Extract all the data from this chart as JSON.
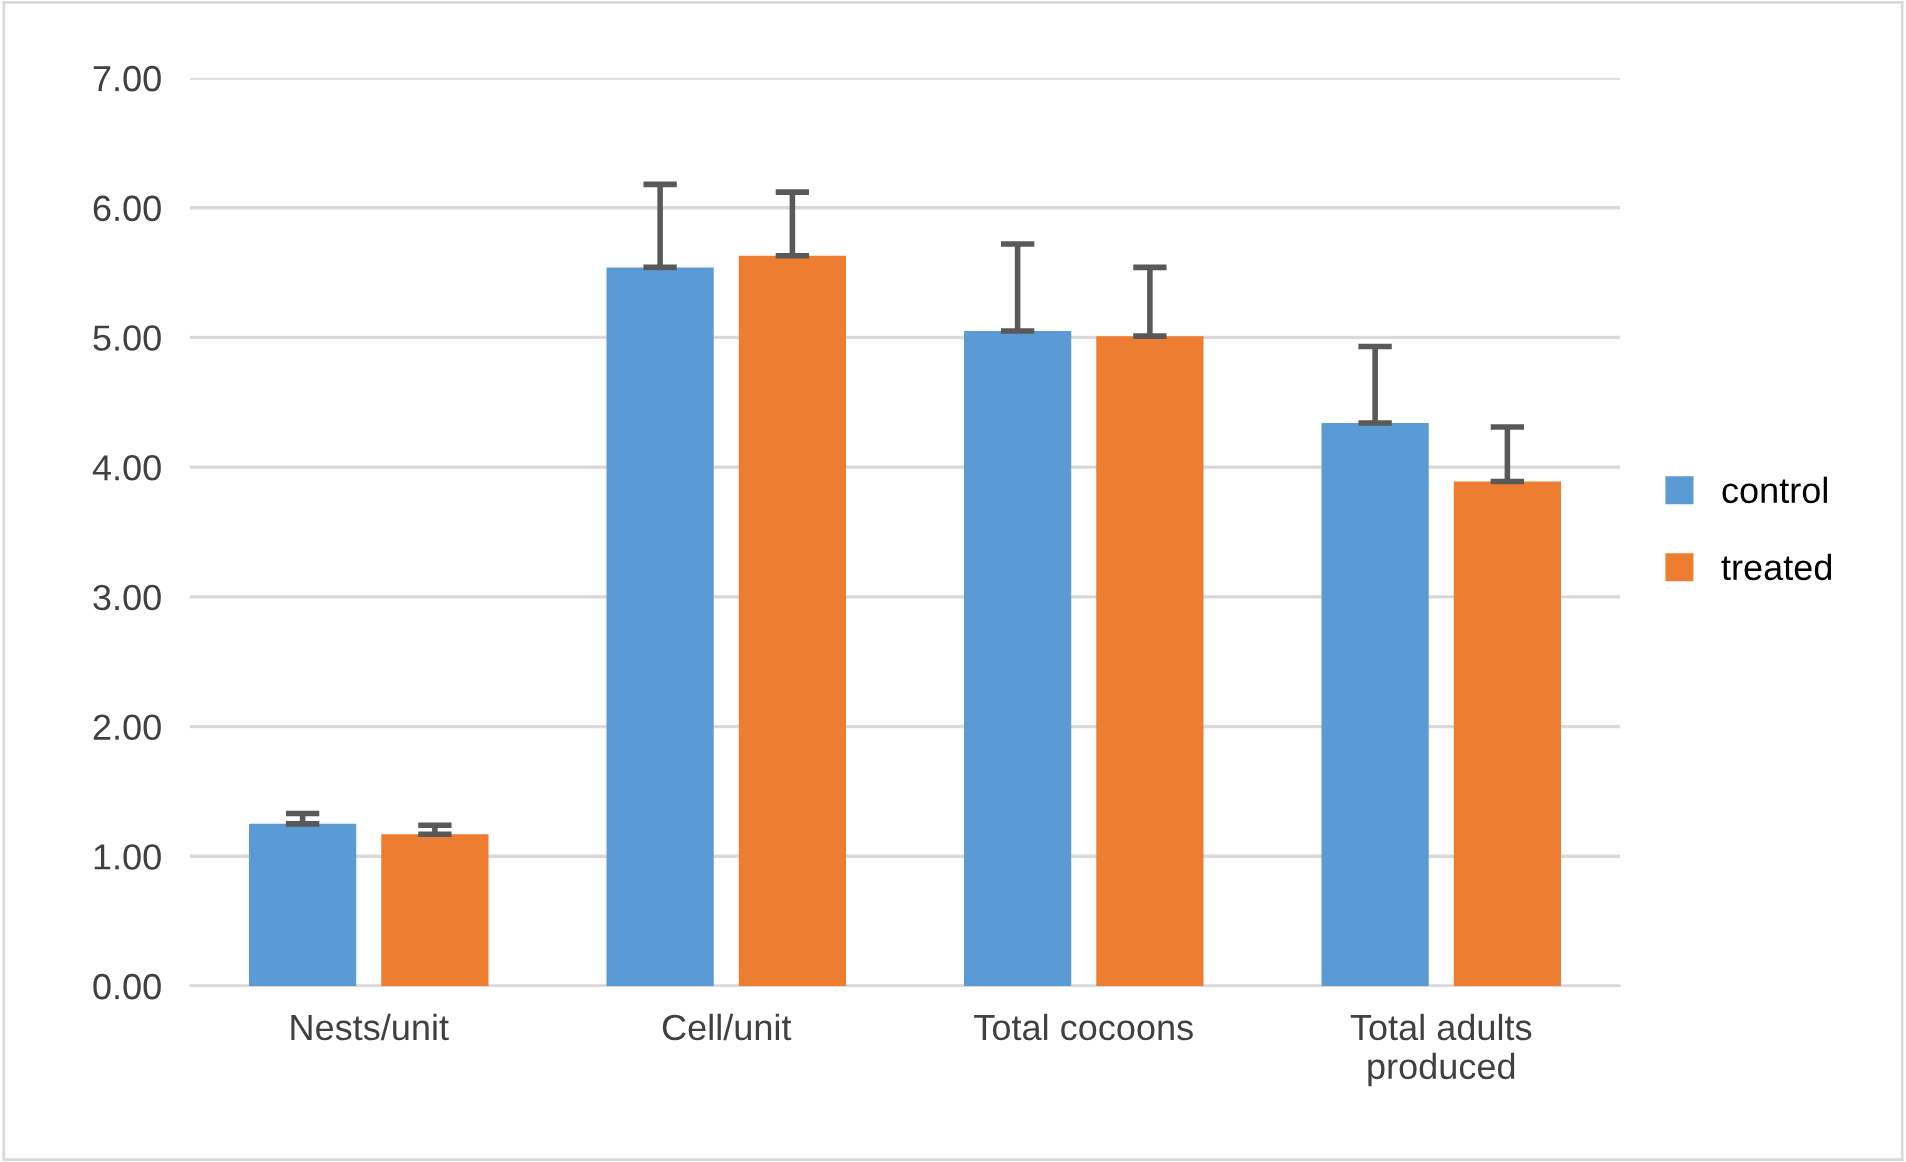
{
  "chart_data": {
    "type": "bar",
    "categories": [
      "Nests/unit",
      "Cell/unit",
      "Total cocoons",
      "Total adults\nproduced"
    ],
    "series": [
      {
        "name": "control",
        "color": "#5b9bd5",
        "values": [
          1.25,
          5.54,
          5.05,
          4.34
        ],
        "errors": [
          0.08,
          0.64,
          0.67,
          0.59
        ]
      },
      {
        "name": "treated",
        "color": "#ed7d31",
        "values": [
          1.17,
          5.63,
          5.01,
          3.89
        ],
        "errors": [
          0.07,
          0.49,
          0.53,
          0.42
        ]
      }
    ],
    "ylim": [
      0,
      7
    ],
    "yticks": [
      {
        "value": 0,
        "label": "0.00"
      },
      {
        "value": 1,
        "label": "1.00"
      },
      {
        "value": 2,
        "label": "2.00"
      },
      {
        "value": 3,
        "label": "3.00"
      },
      {
        "value": 4,
        "label": "4.00"
      },
      {
        "value": 5,
        "label": "5.00"
      },
      {
        "value": 6,
        "label": "6.00"
      },
      {
        "value": 7,
        "label": "7.00"
      }
    ],
    "grid": "y",
    "legend": "right"
  }
}
